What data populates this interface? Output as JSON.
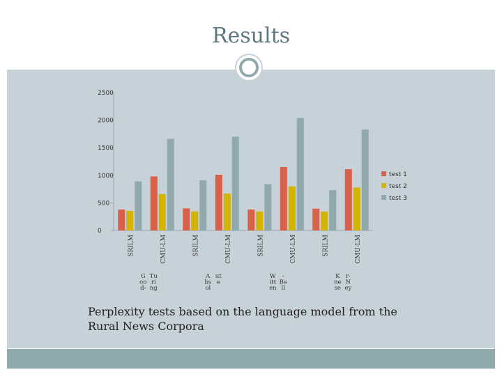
{
  "slide": {
    "title": "Results",
    "caption": "Perplexity tests based on the language model from the Rural News Corpora"
  },
  "colors": {
    "title": "#5f7781",
    "background": "#c7d1d8",
    "accent": "#8fa9ad"
  },
  "chart_data": {
    "type": "bar",
    "categories": [
      "SRILM",
      "CMU-LM",
      "SRILM",
      "CMU-LM",
      "SRILM",
      "CMU-LM",
      "SRILM",
      "CMU-LM"
    ],
    "category_groups": [
      {
        "label": "G oo d- Tu ri ng",
        "category_indices": [
          0,
          1
        ]
      },
      {
        "label": "A bs ol ut e",
        "category_indices": [
          2,
          3
        ]
      },
      {
        "label": "W itt en - Be ll",
        "category_indices": [
          4,
          5
        ]
      },
      {
        "label": "K ne se r- N ey",
        "category_indices": [
          6,
          7
        ]
      }
    ],
    "series": [
      {
        "name": "test 1",
        "color": "#d9604a",
        "values": [
          380,
          980,
          400,
          1010,
          380,
          1150,
          395,
          1110
        ]
      },
      {
        "name": "test 2",
        "color": "#d4b400",
        "values": [
          355,
          660,
          345,
          670,
          345,
          800,
          345,
          780
        ]
      },
      {
        "name": "test 3",
        "color": "#8fa9ad",
        "values": [
          890,
          1660,
          910,
          1700,
          840,
          2040,
          730,
          1830
        ]
      }
    ],
    "yticks": [
      "0",
      "500",
      "1000",
      "1500",
      "2000",
      "2500"
    ],
    "ylim": [
      0,
      2500
    ],
    "grid": false,
    "legend_position": "right"
  }
}
